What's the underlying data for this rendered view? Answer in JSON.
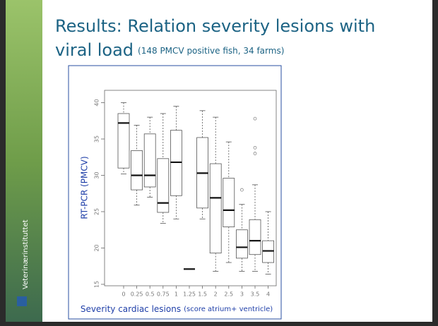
{
  "sidebar_text": "Veterinærinstituttet",
  "chart_data": {
    "type": "box",
    "title_lines": [
      "Results: Relation severity lesions with",
      "viral load"
    ],
    "subtitle": "(148 PMCV positive fish, 34 farms)",
    "ylabel": "RT-PCR (PMCV)",
    "xlabel": "Severity cardiac lesions",
    "xlabel_note": "(score atrium+ ventricle)",
    "categories": [
      "0",
      "0.25",
      "0.5",
      "0.75",
      "1",
      "1.25",
      "1.5",
      "2",
      "2.5",
      "3",
      "3.5",
      "4"
    ],
    "boxes": [
      {
        "min": 30.2,
        "q1": 31,
        "median": 37.2,
        "q3": 38.5,
        "max": 40,
        "outliers": []
      },
      {
        "min": 25.9,
        "q1": 28,
        "median": 30,
        "q3": 33.4,
        "max": 36.9,
        "outliers": []
      },
      {
        "min": 27,
        "q1": 28.4,
        "median": 30,
        "q3": 35.7,
        "max": 38,
        "outliers": []
      },
      {
        "min": 23.4,
        "q1": 24.9,
        "median": 26.2,
        "q3": 32.3,
        "max": 38.5,
        "outliers": []
      },
      {
        "min": 24,
        "q1": 27.2,
        "median": 31.8,
        "q3": 36.2,
        "max": 39.5,
        "outliers": []
      },
      {
        "min": 17.1,
        "q1": 17.1,
        "median": 17.1,
        "q3": 17.1,
        "max": 17.1,
        "outliers": []
      },
      {
        "min": 24,
        "q1": 25.5,
        "median": 30.3,
        "q3": 35.2,
        "max": 38.9,
        "outliers": []
      },
      {
        "min": 16.8,
        "q1": 19.3,
        "median": 26.9,
        "q3": 31.6,
        "max": 38,
        "outliers": []
      },
      {
        "min": 18,
        "q1": 22.9,
        "median": 25.2,
        "q3": 29.6,
        "max": 34.6,
        "outliers": []
      },
      {
        "min": 16.8,
        "q1": 18.6,
        "median": 20.1,
        "q3": 22.5,
        "max": 26,
        "outliers": [
          28
        ]
      },
      {
        "min": 16.8,
        "q1": 19.1,
        "median": 21,
        "q3": 23.9,
        "max": 28.7,
        "outliers": [
          33,
          33.8,
          37.8
        ]
      },
      {
        "min": 16.4,
        "q1": 18,
        "median": 19.6,
        "q3": 21,
        "max": 25,
        "outliers": []
      }
    ],
    "color": "#555555",
    "ylim": [
      14.8,
      41.7
    ],
    "yticks": [
      15,
      20,
      25,
      30,
      35,
      40
    ]
  }
}
